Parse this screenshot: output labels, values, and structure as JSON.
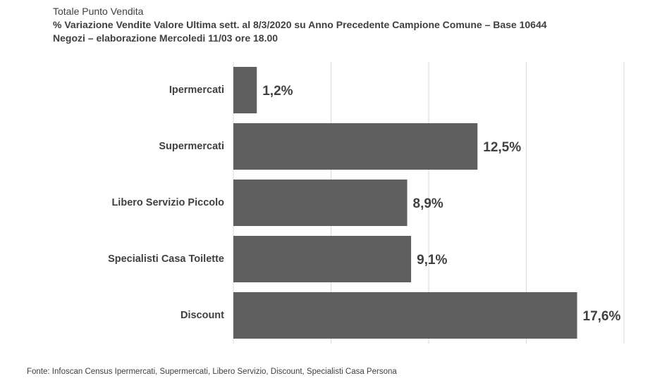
{
  "title": {
    "line1": "Totale Punto Vendita",
    "line2": "% Variazione Vendite Valore Ultima  sett. al 8/3/2020 su Anno Precedente Campione Comune – Base 10644",
    "line3": "Negozi – elaborazione Mercoledi 11/03 ore 18.00"
  },
  "footer": {
    "source": "Fonte: Infoscan Census Ipermercati, Supermercati, Libero Servizio, Discount, Specialisti Casa Persona"
  },
  "chart_data": {
    "type": "bar",
    "orientation": "horizontal",
    "categories": [
      "Ipermercati",
      "Supermercati",
      "Libero Servizio Piccolo",
      "Specialisti Casa Toilette",
      "Discount"
    ],
    "values": [
      1.2,
      12.5,
      8.9,
      9.1,
      17.6
    ],
    "data_labels": [
      "1,2%",
      "12,5%",
      "8,9%",
      "9,1%",
      "17,6%"
    ],
    "xlim": [
      0,
      20
    ],
    "grid": "vertical",
    "bar_color": "#5f5f5f",
    "grid_color": "#d9d9d9",
    "title": "",
    "xlabel": "",
    "ylabel": ""
  }
}
